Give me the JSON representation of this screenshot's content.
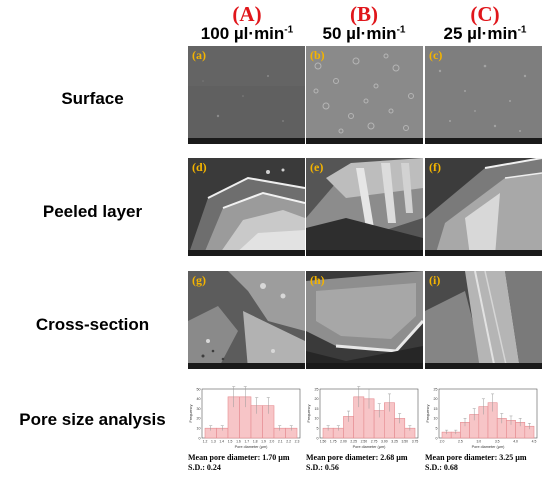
{
  "columns": [
    {
      "letter": "(A)",
      "rate_value": "100 µl·min",
      "rate_exp": "-1"
    },
    {
      "letter": "(B)",
      "rate_value": "50 µl·min",
      "rate_exp": "-1"
    },
    {
      "letter": "(C)",
      "rate_value": "25 µl·min",
      "rate_exp": "-1"
    }
  ],
  "rows": [
    "Surface",
    "Peeled layer",
    "Cross-section",
    "Pore size analysis"
  ],
  "panels": [
    "(a)",
    "(b)",
    "(c)",
    "(d)",
    "(e)",
    "(f)",
    "(g)",
    "(h)",
    "(i)"
  ],
  "histograms": [
    {
      "ylabel": "Frequency",
      "xlabel": "Pore diameter (µm)",
      "xticks": [
        "1.2",
        "1.3",
        "1.4",
        "1.5",
        "1.6",
        "1.7",
        "1.8",
        "1.9",
        "2.0",
        "2.1",
        "2.2",
        "2.3"
      ],
      "values": [
        10,
        10,
        42,
        42,
        33,
        33,
        10,
        10
      ],
      "yticks": [
        "0",
        "10",
        "20",
        "30",
        "40",
        "50"
      ],
      "ymax": 50,
      "mean": "Mean pore diameter: 1.70 µm",
      "sd": "S.D.: 0.24"
    },
    {
      "ylabel": "Frequency",
      "xlabel": "Pore diameter (µm)",
      "xticks": [
        "1.50",
        "1.75",
        "2.00",
        "2.25",
        "2.50",
        "2.75",
        "3.00",
        "3.25",
        "3.50",
        "3.75"
      ],
      "values": [
        5,
        5,
        11,
        21,
        20,
        14,
        18,
        10,
        5
      ],
      "yticks": [
        "0",
        "5",
        "10",
        "15",
        "20",
        "25"
      ],
      "ymax": 25,
      "mean": "Mean pore diameter: 2.68 µm",
      "sd": "S.D.: 0.56"
    },
    {
      "ylabel": "Frequency",
      "xlabel": "Pore diameter (µm)",
      "xticks": [
        "2.0",
        "2.5",
        "3.0",
        "3.5",
        "4.0",
        "4.5"
      ],
      "values": [
        3,
        3,
        8,
        12,
        16,
        18,
        10,
        9,
        8,
        6
      ],
      "yticks": [
        "0",
        "5",
        "10",
        "15",
        "20",
        "25"
      ],
      "ymax": 25,
      "mean": "Mean pore diameter: 3.25 µm",
      "sd": "S.D.: 0.68"
    }
  ],
  "colors": {
    "header_letter": "#e0161b",
    "panel_label": "#f4b400",
    "bar_fill": "#f7c5c7",
    "bar_edge": "#e58a8f"
  }
}
